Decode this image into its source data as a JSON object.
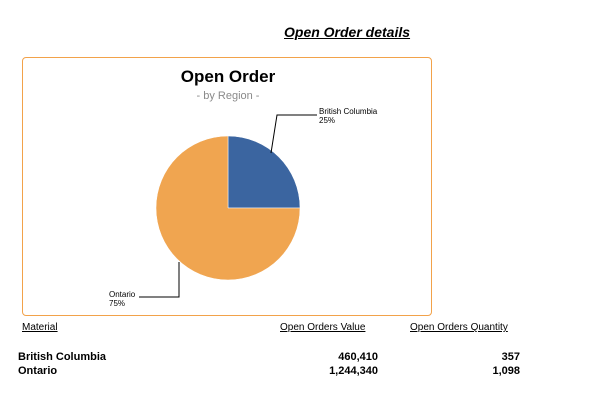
{
  "page_title": "Open Order details",
  "chart": {
    "title": "Open Order",
    "subtitle": "- by Region -"
  },
  "chart_data": {
    "type": "pie",
    "title": "Open Order",
    "subtitle": "- by Region -",
    "slices": [
      {
        "label": "British Columbia",
        "percent_label": "25%",
        "value": 25,
        "color": "#3b65a0"
      },
      {
        "label": "Ontario",
        "percent_label": "75%",
        "value": 75,
        "color": "#f0a550"
      }
    ],
    "border_color": "#f2a24a"
  },
  "table": {
    "headers": {
      "material": "Material",
      "value": "Open Orders Value",
      "quantity": "Open Orders Quantity"
    },
    "rows": [
      {
        "material": "British Columbia",
        "value": "460,410",
        "quantity": "357"
      },
      {
        "material": "Ontario",
        "value": "1,244,340",
        "quantity": "1,098"
      }
    ]
  }
}
